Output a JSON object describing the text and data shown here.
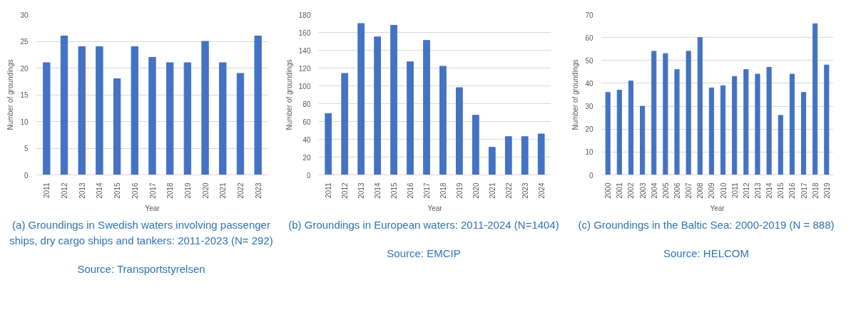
{
  "chart_data": [
    {
      "type": "bar",
      "title": "(a) Groundings in Swedish waters involving passenger ships, dry cargo ships and tankers: 2011-2023 (N= 292)",
      "annotations": [
        "Source: Transportstyrelsen"
      ],
      "xlabel": "Year",
      "ylabel": "Number of groundings",
      "categories": [
        "2011",
        "2012",
        "2013",
        "2014",
        "2015",
        "2016",
        "2017",
        "2018",
        "2019",
        "2020",
        "2021",
        "2022",
        "2023"
      ],
      "series": [
        {
          "color": "#4472c4",
          "values": [
            21,
            26,
            24,
            24,
            18,
            24,
            22,
            21,
            21,
            25,
            21,
            19,
            26
          ]
        }
      ],
      "ylim": [
        0,
        30
      ],
      "yticks": [
        0,
        5,
        10,
        15,
        20,
        25,
        30
      ],
      "grid": "y"
    },
    {
      "type": "bar",
      "title": "(b) Groundings in European waters: 2011-2024 (N=1404)",
      "annotations": [
        "Source: EMCIP"
      ],
      "xlabel": "Year",
      "ylabel": "Number of groundings",
      "categories": [
        "2011",
        "2012",
        "2013",
        "2014",
        "2015",
        "2016",
        "2017",
        "2018",
        "2019",
        "2020",
        "2021",
        "2022",
        "2023",
        "2024"
      ],
      "series": [
        {
          "color": "#4472c4",
          "values": [
            69,
            114,
            170,
            155,
            168,
            127,
            151,
            122,
            98,
            67,
            31,
            43,
            43,
            46
          ]
        }
      ],
      "ylim": [
        0,
        180
      ],
      "yticks": [
        0,
        20,
        40,
        60,
        80,
        100,
        120,
        140,
        160,
        180
      ],
      "grid": "y"
    },
    {
      "type": "bar",
      "title": "(c) Groundings in the Baltic Sea: 2000-2019 (N = 888)",
      "annotations": [
        "Source: HELCOM"
      ],
      "xlabel": "Year",
      "ylabel": "Number of groundings",
      "categories": [
        "2000",
        "2001",
        "2002",
        "2003",
        "2004",
        "2005",
        "2006",
        "2007",
        "2008",
        "2009",
        "2010",
        "2011",
        "2012",
        "2013",
        "2014",
        "2015",
        "2016",
        "2017",
        "2018",
        "2019"
      ],
      "series": [
        {
          "color": "#4472c4",
          "values": [
            36,
            37,
            41,
            30,
            54,
            53,
            46,
            54,
            60,
            38,
            39,
            43,
            46,
            44,
            47,
            26,
            44,
            36,
            66,
            48
          ]
        }
      ],
      "ylim": [
        0,
        70
      ],
      "yticks": [
        0,
        10,
        20,
        30,
        40,
        50,
        60,
        70
      ],
      "grid": "y"
    }
  ]
}
